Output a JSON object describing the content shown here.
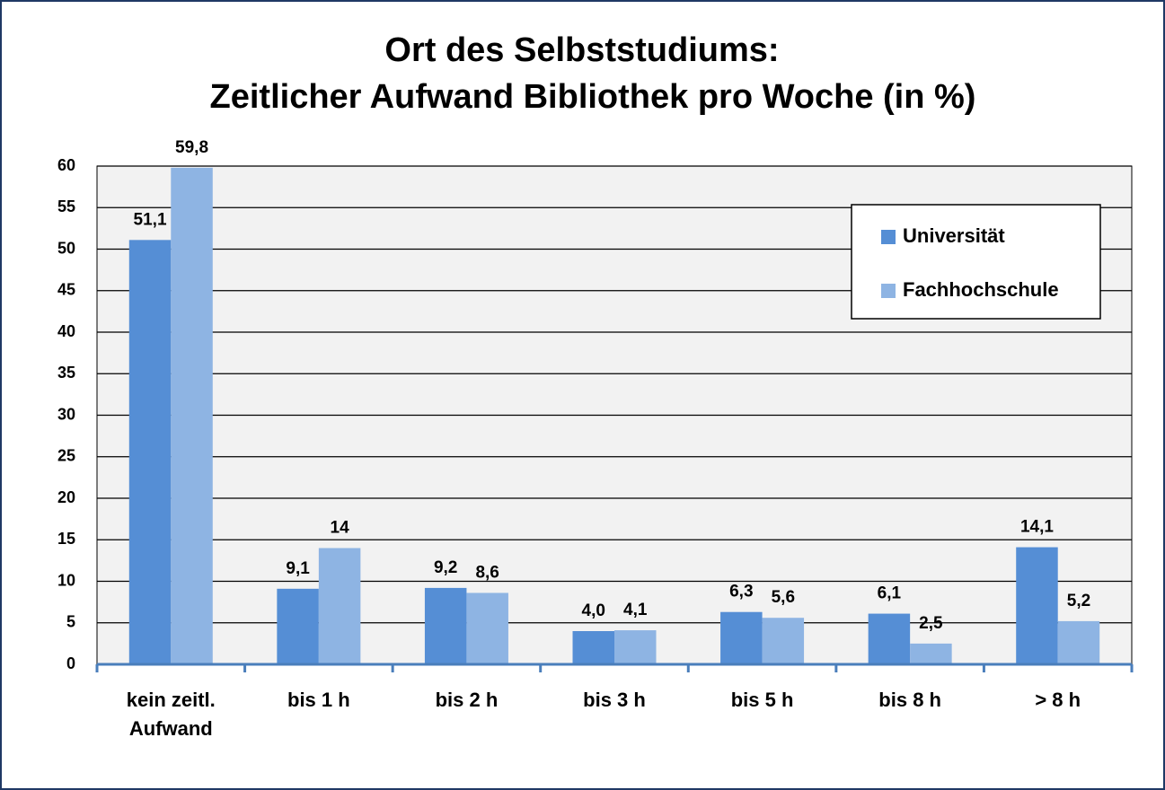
{
  "chart_data": {
    "type": "bar",
    "title": [
      "Ort des Selbststudiums:",
      "Zeitlicher Aufwand Bibliothek pro Woche (in %)"
    ],
    "categories": [
      "kein zeitl. Aufwand",
      "bis 1 h",
      "bis 2 h",
      "bis 3 h",
      "bis 5 h",
      "bis 8 h",
      "> 8 h"
    ],
    "series": [
      {
        "name": "Universität",
        "color": "#558ed5",
        "values": [
          51.1,
          9.1,
          9.2,
          4.0,
          6.3,
          6.1,
          14.1
        ],
        "value_labels": [
          "51,1",
          "9,1",
          "9,2",
          "4,0",
          "6,3",
          "6,1",
          "14,1"
        ]
      },
      {
        "name": "Fachhochschule",
        "color": "#8eb4e3",
        "values": [
          59.8,
          14,
          8.6,
          4.1,
          5.6,
          2.5,
          5.2
        ],
        "value_labels": [
          "59,8",
          "14",
          "8,6",
          "4,1",
          "5,6",
          "2,5",
          "5,2"
        ]
      }
    ],
    "ylim": [
      0,
      60
    ],
    "yticks": [
      0,
      5,
      10,
      15,
      20,
      25,
      30,
      35,
      40,
      45,
      50,
      55,
      60
    ],
    "grid": true,
    "legend": "upper right"
  }
}
